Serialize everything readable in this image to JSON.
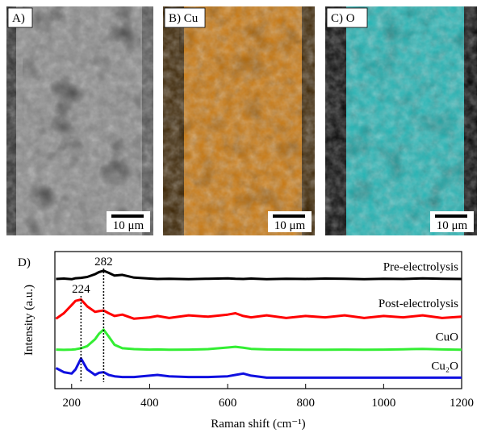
{
  "panels": [
    {
      "label": "A)",
      "scale": "10 μm"
    },
    {
      "label": "B) Cu",
      "scale": "10 μm"
    },
    {
      "label": "C) O",
      "scale": "10 μm"
    }
  ],
  "chart_data": {
    "type": "line",
    "panel_label": "D)",
    "x_label": "Raman shift (cm⁻¹)",
    "y_label": "Intensity (a.u.)",
    "x": [
      160,
      180,
      200,
      210,
      224,
      240,
      260,
      270,
      282,
      295,
      310,
      330,
      360,
      400,
      420,
      450,
      500,
      550,
      600,
      620,
      640,
      660,
      700,
      750,
      800,
      850,
      900,
      950,
      1000,
      1050,
      1100,
      1150,
      1200
    ],
    "series": [
      {
        "name": "Pre-electrolysis",
        "color": "#000000",
        "values": [
          80,
          80.3,
          79.8,
          80.5,
          80.8,
          81.5,
          83.5,
          85,
          86,
          84.5,
          82.5,
          83,
          81,
          80.3,
          80,
          80.2,
          79.9,
          80.2,
          80.4,
          80.1,
          80,
          80.3,
          79.9,
          80.2,
          80,
          80.3,
          80.1,
          79.9,
          80.2,
          80,
          80.4,
          80.1,
          80
        ]
      },
      {
        "name": "Post-electrolysis",
        "color": "#ff0000",
        "values": [
          51,
          55,
          61,
          64,
          65,
          60,
          56,
          56.5,
          57,
          55,
          53,
          54,
          51,
          52,
          53,
          51.5,
          53.5,
          52.5,
          54,
          55,
          53,
          52,
          53.5,
          51.5,
          53,
          52,
          53.5,
          51.5,
          53,
          52,
          53.5,
          51.5,
          52.5
        ]
      },
      {
        "name": "CuO",
        "color": "#33ee33",
        "values": [
          28.5,
          28.3,
          28.5,
          28.7,
          29.5,
          31,
          36,
          40,
          43,
          38,
          32,
          29.5,
          28.8,
          28.5,
          28.6,
          28.4,
          28.5,
          28.8,
          30,
          30.5,
          29.8,
          29,
          28.6,
          28.5,
          28.4,
          28.4,
          28.5,
          28.4,
          28.5,
          28.7,
          29,
          28.6,
          28.4
        ]
      },
      {
        "name": "Cu₂O",
        "color": "#1010e0",
        "values": [
          15,
          12,
          11,
          14,
          22,
          14,
          10,
          11.5,
          12,
          10,
          9,
          8.5,
          8.5,
          9.5,
          10,
          9,
          8.5,
          8.5,
          9,
          10,
          11,
          9.5,
          8,
          8,
          8,
          8,
          8,
          8,
          8,
          8,
          8,
          8,
          8
        ]
      }
    ],
    "peak_markers": [
      224,
      282
    ],
    "xlim": [
      157,
      1200
    ],
    "ylim": [
      0,
      100
    ],
    "xticks": [
      200,
      400,
      600,
      800,
      1000,
      1200
    ]
  }
}
